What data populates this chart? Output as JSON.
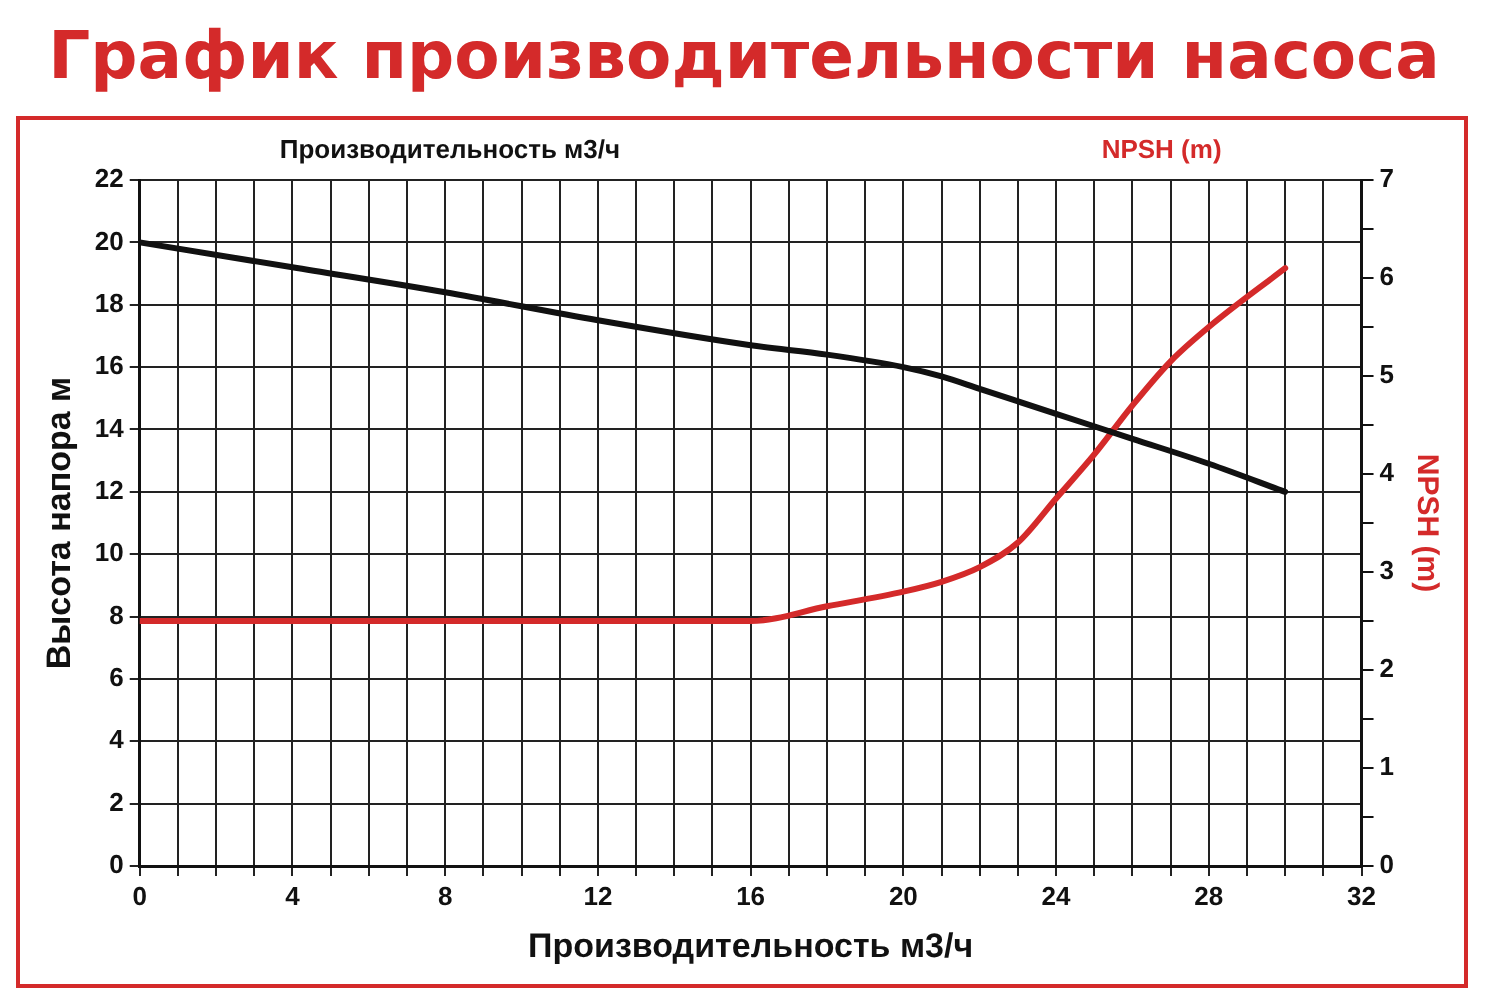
{
  "chart_data": {
    "type": "line",
    "title": "График производительности насоса",
    "xlabel": "Производительность м3/ч",
    "ylabel": "Высота напора м",
    "y2label": "NPSH (m)",
    "annotations": [
      "Производительность м3/ч",
      "NPSH (m)"
    ],
    "series": [
      {
        "color": "#111111",
        "x": [
          0,
          4,
          8,
          12,
          16,
          18,
          20,
          21,
          22,
          24,
          26,
          28,
          30
        ],
        "values": [
          20,
          19.2,
          18.4,
          17.5,
          16.7,
          16.4,
          16,
          15.7,
          15.3,
          14.5,
          13.7,
          12.9,
          12
        ]
      },
      {
        "color": "#d42a2a",
        "axis": "y2",
        "x": [
          0,
          4,
          8,
          12,
          14,
          16,
          18,
          20,
          21,
          22,
          23,
          24,
          25,
          26,
          27,
          28,
          30
        ],
        "values": [
          2.5,
          2.5,
          2.5,
          2.5,
          2.5,
          2.5,
          2.65,
          2.8,
          2.9,
          3.05,
          3.3,
          3.75,
          4.2,
          4.7,
          5.15,
          5.5,
          6.1
        ]
      }
    ],
    "xlim": [
      0,
      32
    ],
    "xticks": [
      0,
      {
        "value": 1,
        "label": null
      },
      {
        "value": 2,
        "label": null
      },
      {
        "value": 3,
        "label": null
      },
      4,
      {
        "value": 5,
        "label": null
      },
      {
        "value": 6,
        "label": null
      },
      {
        "value": 7,
        "label": null
      },
      8,
      {
        "value": 9,
        "label": null
      },
      {
        "value": 10,
        "label": null
      },
      {
        "value": 11,
        "label": null
      },
      12,
      {
        "value": 13,
        "label": null
      },
      {
        "value": 14,
        "label": null
      },
      {
        "value": 15,
        "label": null
      },
      16,
      {
        "value": 17,
        "label": null
      },
      {
        "value": 18,
        "label": null
      },
      {
        "value": 19,
        "label": null
      },
      20,
      {
        "value": 21,
        "label": null
      },
      {
        "value": 22,
        "label": null
      },
      {
        "value": 23,
        "label": null
      },
      24,
      {
        "value": 25,
        "label": null
      },
      {
        "value": 26,
        "label": null
      },
      {
        "value": 27,
        "label": null
      },
      28,
      {
        "value": 29,
        "label": null
      },
      {
        "value": 30,
        "label": null
      },
      {
        "value": 31,
        "label": null
      },
      32
    ],
    "ylim": [
      0,
      22
    ],
    "yticks": [
      0,
      2,
      4,
      6,
      8,
      10,
      12,
      14,
      16,
      18,
      20,
      22
    ],
    "y2lim": [
      0,
      7
    ],
    "y2ticks": [
      0,
      {
        "value": 0.5,
        "label": null
      },
      1,
      {
        "value": 1.5,
        "label": null
      },
      2,
      {
        "value": 2.5,
        "label": null
      },
      3,
      {
        "value": 3.5,
        "label": null
      },
      4,
      {
        "value": 4.5,
        "label": null
      },
      5,
      {
        "value": 5.5,
        "label": null
      },
      6,
      {
        "value": 6.5,
        "label": null
      },
      7
    ],
    "grid": true,
    "legend": false,
    "marker": "none",
    "line_style": "solid"
  }
}
